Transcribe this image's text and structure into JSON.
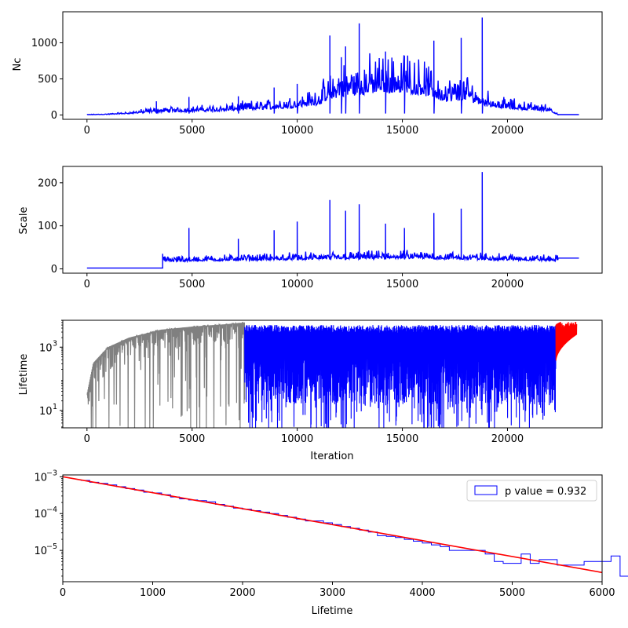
{
  "chart_data": [
    {
      "type": "line",
      "ylabel": "Nc",
      "xlabel": "",
      "xlim": [
        -1150,
        24500
      ],
      "ylim": [
        -60,
        1430
      ],
      "scale": "linear",
      "xticks": [
        0,
        5000,
        10000,
        15000,
        20000
      ],
      "xtick_labels": [
        "0",
        "5000",
        "10000",
        "15000",
        "20000"
      ],
      "yticks": [
        0,
        500,
        1000
      ],
      "ytick_labels": [
        "0",
        "500",
        "1000"
      ],
      "grid": false,
      "series": [
        {
          "color": "#0000ff",
          "x": [
            0,
            1000,
            2000,
            3000,
            3600,
            4000,
            4850,
            5000,
            6000,
            7000,
            8000,
            9000,
            10000,
            11000,
            11550,
            12000,
            12300,
            13000,
            14000,
            15000,
            16000,
            16500,
            17000,
            17800,
            18000,
            18800,
            19000,
            20000,
            21000,
            22000,
            22400,
            23400
          ],
          "y": [
            5,
            12,
            28,
            60,
            80,
            70,
            240,
            75,
            85,
            100,
            120,
            140,
            170,
            230,
            1100,
            420,
            950,
            1270,
            500,
            520,
            450,
            1030,
            300,
            1070,
            330,
            1350,
            200,
            140,
            110,
            90,
            5,
            5
          ],
          "spike_x": [
            3300,
            4850,
            7200,
            8900,
            10000,
            11550,
            12100,
            12300,
            12950,
            14200,
            15100,
            16500,
            17800,
            18800
          ],
          "spike_y": [
            190,
            250,
            260,
            380,
            430,
            1100,
            800,
            950,
            1270,
            880,
            820,
            1030,
            1070,
            1350
          ]
        }
      ]
    },
    {
      "type": "line",
      "ylabel": "Scale",
      "xlabel": "",
      "xlim": [
        -1150,
        24500
      ],
      "ylim": [
        -10,
        238
      ],
      "scale": "linear",
      "xticks": [
        0,
        5000,
        10000,
        15000,
        20000
      ],
      "xtick_labels": [
        "0",
        "5000",
        "10000",
        "15000",
        "20000"
      ],
      "yticks": [
        0,
        100,
        200
      ],
      "ytick_labels": [
        "0",
        "100",
        "200"
      ],
      "grid": false,
      "series": [
        {
          "color": "#0000ff",
          "x": [
            0,
            3600,
            3600,
            5000,
            10000,
            15000,
            20000,
            22400,
            22400,
            23400
          ],
          "y": [
            2,
            2,
            22,
            22,
            28,
            32,
            25,
            22,
            25,
            25
          ],
          "spike_x": [
            3600,
            4850,
            7200,
            8900,
            10000,
            11550,
            12300,
            12950,
            14200,
            15100,
            16500,
            17800,
            18800
          ],
          "spike_y": [
            35,
            95,
            70,
            90,
            110,
            160,
            135,
            150,
            105,
            95,
            130,
            140,
            225
          ]
        }
      ]
    },
    {
      "type": "line",
      "ylabel": "Lifetime",
      "xlabel": "Iteration",
      "xlim": [
        -1150,
        24500
      ],
      "ylim_log10": [
        0.45,
        3.85
      ],
      "scale": "log",
      "xticks": [
        0,
        5000,
        10000,
        15000,
        20000
      ],
      "xtick_labels": [
        "0",
        "5000",
        "10000",
        "15000",
        "20000"
      ],
      "yticks_log10": [
        1,
        3
      ],
      "ytick_labels": [
        "10",
        "10"
      ],
      "ytick_exponents": [
        "1",
        "3"
      ],
      "grid": false,
      "series": [
        {
          "color": "#808080",
          "x_range": [
            0,
            7500
          ],
          "envelope_top_log10": [
            1.5,
            2.5,
            3.0,
            3.3,
            3.55,
            3.65,
            3.72,
            3.78
          ],
          "envelope_x": [
            0,
            300,
            1000,
            2000,
            3500,
            5000,
            6500,
            7500
          ]
        },
        {
          "color": "#0000ff",
          "x_range": [
            7500,
            22300
          ],
          "top_log10": 3.7,
          "bottom_log10": 1.0
        },
        {
          "color": "#ff0000",
          "x_range": [
            22300,
            23300
          ],
          "top_log10": 3.8,
          "bottom_log10": 2.5
        }
      ]
    },
    {
      "type": "histogram",
      "ylabel": "",
      "xlabel": "Lifetime",
      "xlim": [
        0,
        6000
      ],
      "ylim_log10": [
        -5.85,
        -2.95
      ],
      "scale": "log",
      "xticks": [
        0,
        1000,
        2000,
        3000,
        4000,
        5000,
        6000
      ],
      "xtick_labels": [
        "0",
        "1000",
        "2000",
        "3000",
        "4000",
        "5000",
        "6000"
      ],
      "yticks_log10": [
        -3,
        -4,
        -5
      ],
      "ytick_labels": [
        "10",
        "10",
        "10"
      ],
      "ytick_exponents": [
        "−3",
        "−4",
        "−5"
      ],
      "grid": false,
      "legend": {
        "label": "p value = 0.932",
        "position": "upper-right"
      },
      "histogram": {
        "color": "#0000ff",
        "bin_width": 100,
        "bin_start": 200,
        "values_log10": [
          -3.1,
          -3.15,
          -3.18,
          -3.22,
          -3.27,
          -3.32,
          -3.36,
          -3.42,
          -3.44,
          -3.49,
          -3.55,
          -3.6,
          -3.63,
          -3.65,
          -3.68,
          -3.75,
          -3.8,
          -3.85,
          -3.88,
          -3.92,
          -3.96,
          -4.0,
          -4.05,
          -4.1,
          -4.15,
          -4.2,
          -4.2,
          -4.25,
          -4.3,
          -4.35,
          -4.4,
          -4.45,
          -4.5,
          -4.6,
          -4.62,
          -4.65,
          -4.7,
          -4.75,
          -4.8,
          -4.85,
          -4.9,
          -5.0,
          -5.0,
          -5.0,
          -5.0,
          -5.1,
          -5.3,
          -5.35,
          -5.35,
          -5.1,
          -5.35,
          -5.25,
          -5.25,
          -5.4,
          -5.4,
          -5.4,
          -5.3,
          -5.3,
          -5.3,
          -5.15,
          -5.7
        ]
      },
      "fit_line": {
        "color": "#ff0000",
        "x": [
          0,
          6000
        ],
        "y_log10": [
          -3.0,
          -5.6
        ]
      }
    }
  ]
}
